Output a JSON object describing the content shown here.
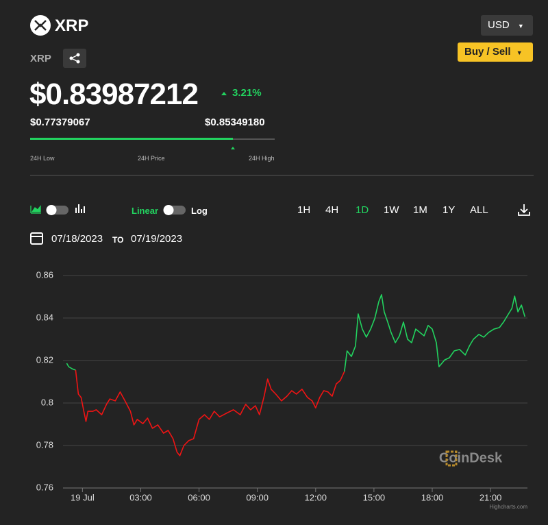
{
  "header": {
    "asset": "XRP",
    "currency": "USD",
    "buy_sell": "Buy / Sell",
    "symbol": "XRP"
  },
  "price": {
    "current": "$0.83987212",
    "change": "3.21%",
    "low": {
      "value": 0.77379067,
      "label": "$0.77379067"
    },
    "current_value": 0.83987212,
    "high": {
      "value": 0.8534918,
      "label": "$0.85349180"
    },
    "low_caption": "24H Low",
    "price_caption": "24H Price",
    "high_caption": "24H High"
  },
  "controls": {
    "linear": "Linear",
    "log": "Log",
    "ranges": [
      "1H",
      "4H",
      "1D",
      "1W",
      "1M",
      "1Y",
      "ALL"
    ],
    "date_from": "07/18/2023",
    "to": "TO",
    "date_to": "07/19/2023"
  },
  "chart_data": {
    "type": "line",
    "watermark": "CoinDesk",
    "credit": "Highcharts.com",
    "xlim": [
      -1.0,
      22.9
    ],
    "ylim": [
      0.76,
      0.86
    ],
    "xticks": [
      {
        "value": 0,
        "label": "19 Jul"
      },
      {
        "value": 3,
        "label": "03:00"
      },
      {
        "value": 6,
        "label": "06:00"
      },
      {
        "value": 9,
        "label": "09:00"
      },
      {
        "value": 12,
        "label": "12:00"
      },
      {
        "value": 15,
        "label": "15:00"
      },
      {
        "value": 18,
        "label": "18:00"
      },
      {
        "value": 21,
        "label": "21:00"
      }
    ],
    "yticks": [
      0.76,
      0.78,
      0.8,
      0.82,
      0.84,
      0.86
    ],
    "grid": true,
    "series": [
      {
        "color": "#22d35f",
        "x": [
          -0.81,
          -0.71,
          -0.53,
          -0.35
        ],
        "values": [
          0.8187,
          0.8171,
          0.8161,
          0.8155
        ]
      },
      {
        "color": "#f01414",
        "x": [
          -0.35,
          -0.21,
          -0.07,
          0.07,
          0.18,
          0.28,
          0.53,
          0.71,
          0.99,
          1.24,
          1.41,
          1.69,
          1.94,
          2.19,
          2.47,
          2.65,
          2.82,
          3.11,
          3.35,
          3.6,
          3.88,
          4.17,
          4.41,
          4.66,
          4.87,
          5.01,
          5.22,
          5.47,
          5.72,
          6.0,
          6.28,
          6.53,
          6.78,
          7.06,
          7.41,
          7.77,
          8.12,
          8.4,
          8.65,
          8.9,
          9.11,
          9.35,
          9.53,
          9.71,
          9.95,
          10.24,
          10.52,
          10.77,
          11.01,
          11.3,
          11.58,
          11.82,
          12.0,
          12.21,
          12.42,
          12.64,
          12.85,
          13.06,
          13.27,
          13.48
        ],
        "values": [
          0.8155,
          0.8042,
          0.8026,
          0.7961,
          0.7913,
          0.7961,
          0.7961,
          0.7968,
          0.7945,
          0.7994,
          0.8019,
          0.801,
          0.8052,
          0.801,
          0.7961,
          0.7897,
          0.7923,
          0.7903,
          0.7929,
          0.7881,
          0.7897,
          0.7858,
          0.7871,
          0.7832,
          0.7768,
          0.7752,
          0.78,
          0.7823,
          0.7832,
          0.7923,
          0.7945,
          0.7923,
          0.7961,
          0.7935,
          0.7952,
          0.7968,
          0.7945,
          0.7994,
          0.7968,
          0.7987,
          0.7945,
          0.8032,
          0.8113,
          0.8065,
          0.8042,
          0.801,
          0.8032,
          0.8058,
          0.8042,
          0.8065,
          0.8026,
          0.801,
          0.7977,
          0.8026,
          0.8058,
          0.8052,
          0.8032,
          0.809,
          0.8106,
          0.8148
        ]
      },
      {
        "color": "#22d35f",
        "x": [
          13.48,
          13.62,
          13.84,
          14.05,
          14.19,
          14.4,
          14.61,
          14.83,
          15.04,
          15.25,
          15.39,
          15.53,
          15.71,
          15.88,
          16.1,
          16.31,
          16.52,
          16.73,
          16.94,
          17.15,
          17.37,
          17.58,
          17.79,
          18.0,
          18.21,
          18.35,
          18.64,
          18.88,
          19.13,
          19.41,
          19.7,
          19.91,
          20.12,
          20.4,
          20.65,
          20.9,
          21.18,
          21.46,
          21.67,
          21.88,
          22.1,
          22.24,
          22.41,
          22.59,
          22.77
        ],
        "values": [
          0.8148,
          0.8245,
          0.8219,
          0.8268,
          0.8419,
          0.8348,
          0.831,
          0.8348,
          0.8397,
          0.8477,
          0.851,
          0.8429,
          0.8381,
          0.8332,
          0.8284,
          0.8316,
          0.8381,
          0.83,
          0.8284,
          0.8348,
          0.8332,
          0.8316,
          0.8365,
          0.8348,
          0.8284,
          0.8171,
          0.8203,
          0.8213,
          0.8245,
          0.8252,
          0.8226,
          0.8268,
          0.83,
          0.8323,
          0.831,
          0.8332,
          0.8348,
          0.8355,
          0.8381,
          0.8413,
          0.8445,
          0.8503,
          0.8429,
          0.8461,
          0.8406
        ]
      }
    ]
  }
}
